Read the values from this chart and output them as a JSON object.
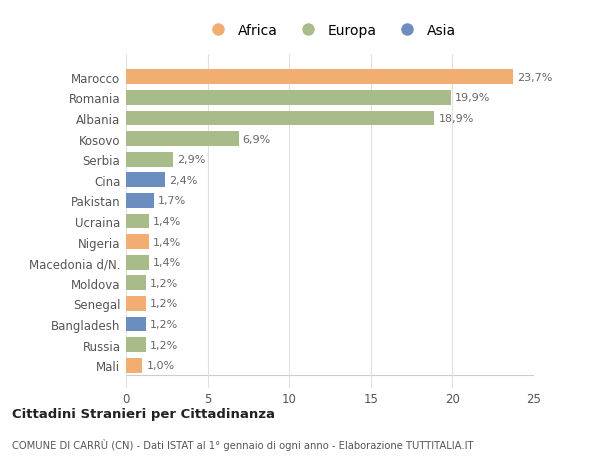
{
  "countries": [
    "Marocco",
    "Romania",
    "Albania",
    "Kosovo",
    "Serbia",
    "Cina",
    "Pakistan",
    "Ucraina",
    "Nigeria",
    "Macedonia d/N.",
    "Moldova",
    "Senegal",
    "Bangladesh",
    "Russia",
    "Mali"
  ],
  "values": [
    23.7,
    19.9,
    18.9,
    6.9,
    2.9,
    2.4,
    1.7,
    1.4,
    1.4,
    1.4,
    1.2,
    1.2,
    1.2,
    1.2,
    1.0
  ],
  "labels": [
    "23,7%",
    "19,9%",
    "18,9%",
    "6,9%",
    "2,9%",
    "2,4%",
    "1,7%",
    "1,4%",
    "1,4%",
    "1,4%",
    "1,2%",
    "1,2%",
    "1,2%",
    "1,2%",
    "1,0%"
  ],
  "continents": [
    "Africa",
    "Europa",
    "Europa",
    "Europa",
    "Europa",
    "Asia",
    "Asia",
    "Europa",
    "Africa",
    "Europa",
    "Europa",
    "Africa",
    "Asia",
    "Europa",
    "Africa"
  ],
  "colors": {
    "Africa": "#F2AE72",
    "Europa": "#A8BC8A",
    "Asia": "#6B8DBF"
  },
  "xlim": [
    0,
    25
  ],
  "xticks": [
    0,
    5,
    10,
    15,
    20,
    25
  ],
  "title_main": "Cittadini Stranieri per Cittadinanza",
  "title_sub": "COMUNE DI CARRÙ (CN) - Dati ISTAT al 1° gennaio di ogni anno - Elaborazione TUTTITALIA.IT",
  "background_color": "#ffffff",
  "bar_height": 0.72
}
